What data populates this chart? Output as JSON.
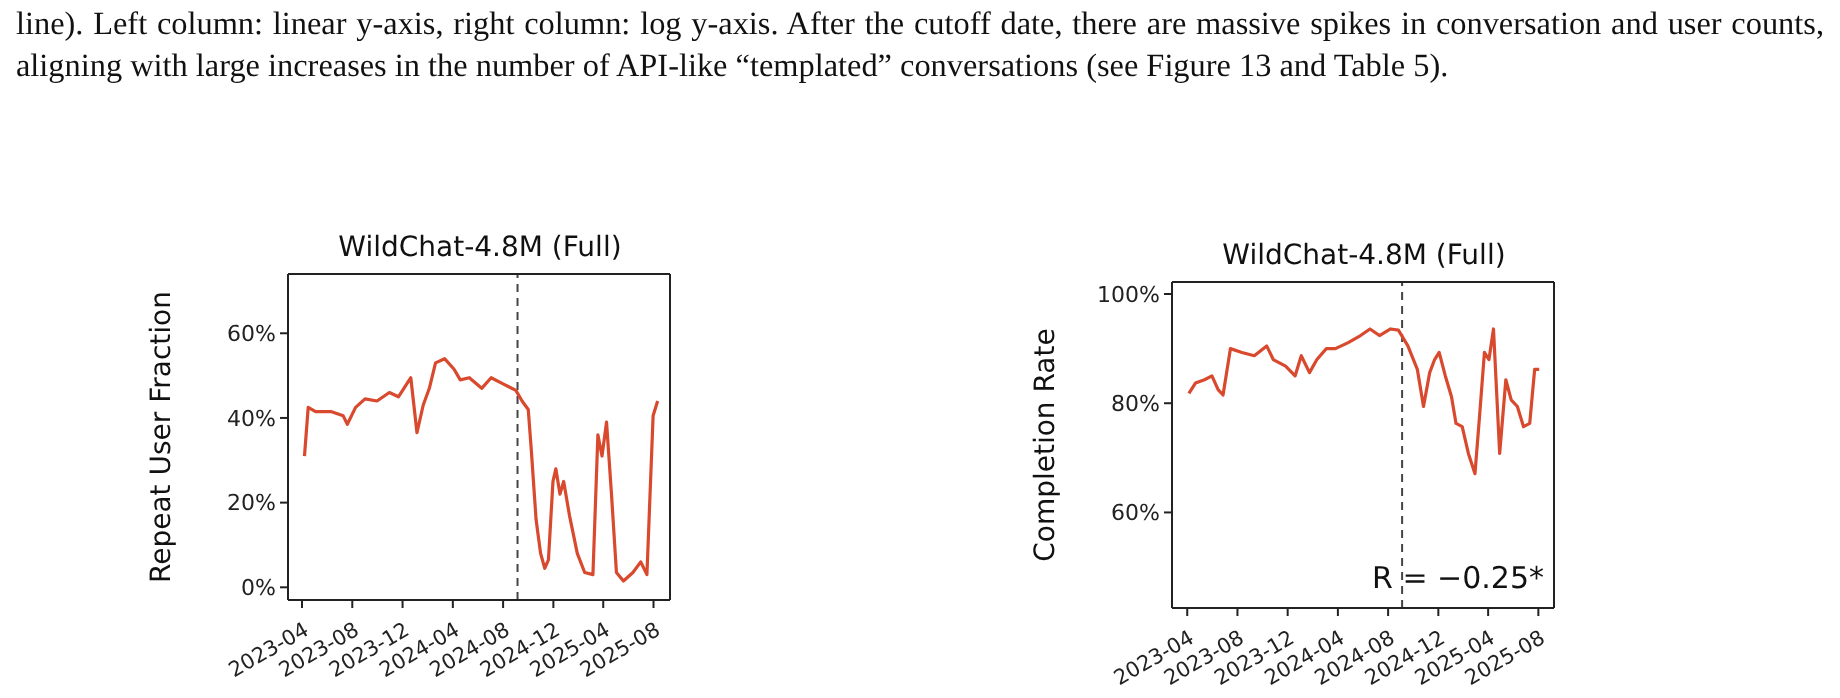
{
  "chart_data": [
    {
      "type": "line",
      "title": "WildChat-4.8M (Full)",
      "ylabel": "Repeat User Fraction",
      "annotations": [
        "line). Left column: linear y-axis, right column: log y-axis. After the cutoff date, there are massive spikes in conversation and user counts, aligning with large increases in the number of API-like “templated” conversations (see Figure 13 and Table 5)."
      ],
      "x": [
        "2023-04-07",
        "2023-04-16",
        "2023-05-04",
        "2023-06-10",
        "2023-07-10",
        "2023-07-20",
        "2023-08-09",
        "2023-09-01",
        "2023-09-30",
        "2023-10-30",
        "2023-11-21",
        "2023-12-21",
        "2024-01-05",
        "2024-01-20",
        "2024-02-04",
        "2024-02-19",
        "2024-03-12",
        "2024-04-04",
        "2024-04-19",
        "2024-05-11",
        "2024-06-10",
        "2024-07-03",
        "2024-08-02",
        "2024-09-01",
        "2024-09-16",
        "2024-10-01",
        "2024-10-08",
        "2024-10-20",
        "2024-10-31",
        "2024-11-10",
        "2024-11-19",
        "2024-11-30",
        "2024-12-07",
        "2024-12-17",
        "2024-12-26",
        "2025-01-09",
        "2025-01-28",
        "2025-02-15",
        "2025-03-07",
        "2025-03-19",
        "2025-03-29",
        "2025-04-09",
        "2025-04-21",
        "2025-05-03",
        "2025-05-20",
        "2025-06-12",
        "2025-07-01",
        "2025-07-16",
        "2025-07-31",
        "2025-08-11"
      ],
      "series": [
        {
          "color": "#d9492e",
          "values": [
            31,
            42.5,
            41.5,
            41.5,
            40.5,
            38.5,
            42.5,
            44.5,
            44,
            46,
            45,
            49.5,
            36.5,
            43,
            47,
            53,
            54,
            51.5,
            49,
            49.5,
            47,
            49.5,
            48,
            46.5,
            44,
            42,
            33,
            16,
            8,
            4.5,
            6.5,
            25,
            28,
            22,
            25,
            17,
            8,
            3.5,
            3,
            36,
            31,
            39,
            22,
            3.5,
            1.5,
            3.5,
            6,
            3,
            40.5,
            44
          ]
        }
      ],
      "xlim": [
        "2023-02-26",
        "2025-09-10"
      ],
      "xticks": [
        {
          "value": "2023-04-01",
          "label": "2023-04"
        },
        {
          "value": "2023-08-01",
          "label": "2023-08"
        },
        {
          "value": "2023-12-01",
          "label": "2023-12"
        },
        {
          "value": "2024-04-01",
          "label": "2024-04"
        },
        {
          "value": "2024-08-01",
          "label": "2024-08"
        },
        {
          "value": "2024-12-01",
          "label": "2024-12"
        },
        {
          "value": "2025-04-01",
          "label": "2025-04"
        },
        {
          "value": "2025-08-01",
          "label": "2025-08"
        }
      ],
      "ylim": [
        -3,
        74
      ],
      "yticks": [
        {
          "value": 0,
          "label": "0%"
        },
        {
          "value": 20,
          "label": "20%"
        },
        {
          "value": 40,
          "label": "40%"
        },
        {
          "value": 60,
          "label": "60%"
        }
      ],
      "ref_lines": [
        {
          "axis": "x",
          "value": "2024-09-05",
          "color": "#444444",
          "line_style": "dashed"
        }
      ],
      "grid": false,
      "marker": "none",
      "line_style": "solid"
    },
    {
      "type": "line",
      "title": "WildChat-4.8M (Full)",
      "ylabel": "Completion Rate",
      "annotations": [
        "R = −0.25*"
      ],
      "x": [
        "2023-04-05",
        "2023-04-21",
        "2023-05-13",
        "2023-05-31",
        "2023-06-15",
        "2023-06-27",
        "2023-07-15",
        "2023-08-12",
        "2023-09-11",
        "2023-10-11",
        "2023-10-27",
        "2023-11-26",
        "2023-12-19",
        "2024-01-03",
        "2024-01-23",
        "2024-02-10",
        "2024-03-04",
        "2024-03-26",
        "2024-04-26",
        "2024-05-26",
        "2024-06-18",
        "2024-07-11",
        "2024-08-07",
        "2024-08-26",
        "2024-09-18",
        "2024-10-11",
        "2024-10-26",
        "2024-11-10",
        "2024-11-22",
        "2024-12-03",
        "2024-12-18",
        "2025-01-02",
        "2025-01-13",
        "2025-01-28",
        "2025-02-12",
        "2025-02-28",
        "2025-03-11",
        "2025-03-23",
        "2025-04-03",
        "2025-04-14",
        "2025-04-29",
        "2025-05-14",
        "2025-05-27",
        "2025-06-11",
        "2025-06-26",
        "2025-07-11",
        "2025-07-23",
        "2025-08-03"
      ],
      "series": [
        {
          "color": "#d9492e",
          "values": [
            81.8,
            83.7,
            84.3,
            85,
            82.5,
            81.5,
            90,
            89.3,
            88.7,
            90.5,
            88,
            86.8,
            85,
            88.7,
            85.6,
            88,
            90,
            90,
            91.1,
            92.4,
            93.6,
            92.4,
            93.6,
            93.4,
            90.5,
            86.2,
            79.4,
            85.6,
            88,
            89.3,
            85,
            81.2,
            76.3,
            75.7,
            70.8,
            67.1,
            77.5,
            89.3,
            88,
            93.6,
            70.8,
            84.3,
            80.6,
            79.4,
            75.7,
            76.3,
            86.2,
            86.2
          ]
        }
      ],
      "xlim": [
        "2023-02-23",
        "2025-09-08"
      ],
      "xticks": [
        {
          "value": "2023-04-01",
          "label": "2023-04"
        },
        {
          "value": "2023-08-01",
          "label": "2023-08"
        },
        {
          "value": "2023-12-01",
          "label": "2023-12"
        },
        {
          "value": "2024-04-01",
          "label": "2024-04"
        },
        {
          "value": "2024-08-01",
          "label": "2024-08"
        },
        {
          "value": "2024-12-01",
          "label": "2024-12"
        },
        {
          "value": "2025-04-01",
          "label": "2025-04"
        },
        {
          "value": "2025-08-01",
          "label": "2025-08"
        }
      ],
      "ylim": [
        42.5,
        102.2
      ],
      "yticks": [
        {
          "value": 60,
          "label": "60%"
        },
        {
          "value": 80,
          "label": "80%"
        },
        {
          "value": 100,
          "label": "100%"
        }
      ],
      "ref_lines": [
        {
          "axis": "x",
          "value": "2024-09-04",
          "color": "#444444",
          "line_style": "dashed"
        }
      ],
      "grid": false,
      "marker": "none",
      "line_style": "solid"
    }
  ]
}
